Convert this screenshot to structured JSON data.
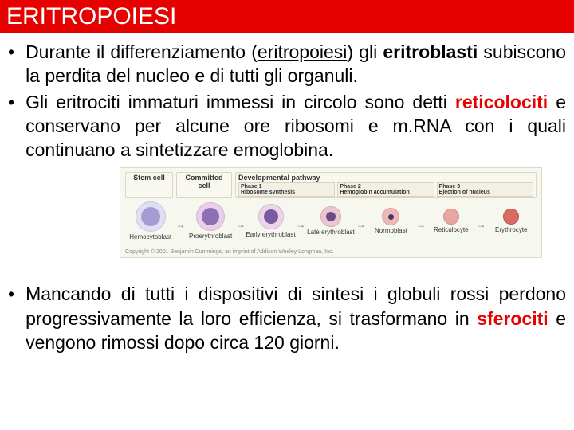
{
  "header": {
    "title": "ERITROPOIESI"
  },
  "bullets": {
    "b1_pre": "Durante il differenziamento (",
    "b1_under": "eritropoiesi",
    "b1_post1": ") gli ",
    "b1_bold": "eritroblasti",
    "b1_post2": " subiscono la perdita del nucleo e di tutti gli organuli.",
    "b2_pre": "Gli eritrociti immaturi immessi in circolo sono detti ",
    "b2_red": "reticolociti",
    "b2_post": " e conservano per alcune ore ribosomi e m.RNA con i quali continuano a sintetizzare emoglobina.",
    "b3_pre": "Mancando di tutti i dispositivi di sintesi i globuli rossi perdono progressivamente la loro efficienza, si trasformano in ",
    "b3_red": "sferociti",
    "b3_post": " e vengono rimossi dopo circa 120 giorni."
  },
  "diagram": {
    "hdr_stem": "Stem cell",
    "hdr_comm": "Committed cell",
    "hdr_dev": "Developmental pathway",
    "phase1_t": "Phase 1",
    "phase1_s": "Ribosome synthesis",
    "phase2_t": "Phase 2",
    "phase2_s": "Hemoglobin accumulation",
    "phase3_t": "Phase 3",
    "phase3_s": "Ejection of nucleus",
    "cells": [
      {
        "label": "Hemocytoblast",
        "size": 38,
        "bg": "#dfe0f4",
        "border": "#c4c6ea",
        "nuc_size": 24,
        "nuc_bg": "#a69cd2"
      },
      {
        "label": "Proerythroblast",
        "size": 36,
        "bg": "#e8d0e8",
        "border": "#d4b4d4",
        "nuc_size": 22,
        "nuc_bg": "#8e6fb3"
      },
      {
        "label": "Early erythroblast",
        "size": 32,
        "bg": "#ead6e6",
        "border": "#d4b8cc",
        "nuc_size": 18,
        "nuc_bg": "#7a5aa0"
      },
      {
        "label": "Late erythroblast",
        "size": 26,
        "bg": "#e9c6d0",
        "border": "#d8a8b6",
        "nuc_size": 12,
        "nuc_bg": "#6b4a86"
      },
      {
        "label": "Normoblast",
        "size": 22,
        "bg": "#ebb9b8",
        "border": "#dda09e",
        "nuc_size": 7,
        "nuc_bg": "#4a3560"
      },
      {
        "label": "Reticulocyte",
        "size": 20,
        "bg": "#e9a6a0",
        "border": "#d88c86",
        "nuc_size": 0,
        "nuc_bg": "transparent"
      },
      {
        "label": "Erythrocyte",
        "size": 20,
        "bg": "#d96b62",
        "border": "#c2564e",
        "nuc_size": 0,
        "nuc_bg": "transparent"
      }
    ],
    "copyright": "Copyright © 2001 Benjamin Cummings, an imprint of Addison Wesley Longman, Inc."
  }
}
